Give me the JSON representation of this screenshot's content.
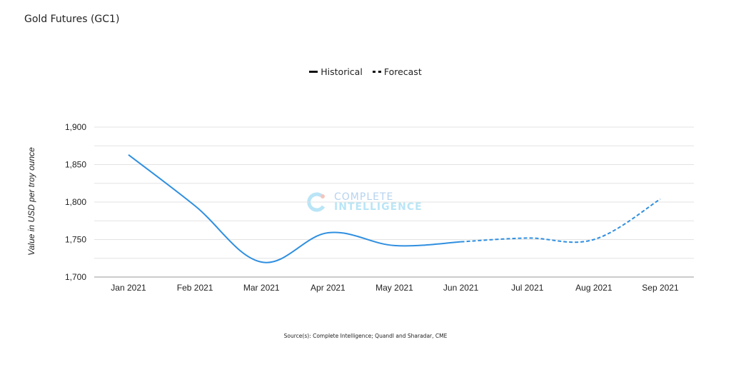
{
  "title": "Gold Futures (GC1)",
  "legend": {
    "historical": "Historical",
    "forecast": "Forecast"
  },
  "source": "Source(s): Complete Intelligence; Quandl and Sharadar, CME",
  "watermark": {
    "line1": "COMPLETE",
    "line2": "INTELLIGENCE"
  },
  "colors": {
    "line": "#2f8fe0",
    "grid": "#e3e3e3",
    "axis": "#999999"
  },
  "chart_data": {
    "type": "line",
    "title": "Gold Futures (GC1)",
    "ylabel": "Value in USD per troy ounce",
    "xlabel": "",
    "ylim": [
      1700,
      1900
    ],
    "yticks": [
      1700,
      1750,
      1800,
      1850,
      1900
    ],
    "ytick_labels": [
      "1,700",
      "1,750",
      "1,800",
      "1,850",
      "1,900"
    ],
    "categories": [
      "Jan 2021",
      "Feb 2021",
      "Mar 2021",
      "Apr 2021",
      "May 2021",
      "Jun 2021",
      "Jul 2021",
      "Aug 2021",
      "Sep 2021"
    ],
    "series": [
      {
        "name": "Historical",
        "style": "solid",
        "values": [
          1863,
          1795,
          1720,
          1759,
          1742,
          1747,
          null,
          null,
          null
        ]
      },
      {
        "name": "Forecast",
        "style": "dashed",
        "values": [
          null,
          null,
          null,
          null,
          null,
          1747,
          1752,
          1750,
          1804
        ]
      }
    ],
    "grid": true,
    "legend_position": "top-center"
  }
}
